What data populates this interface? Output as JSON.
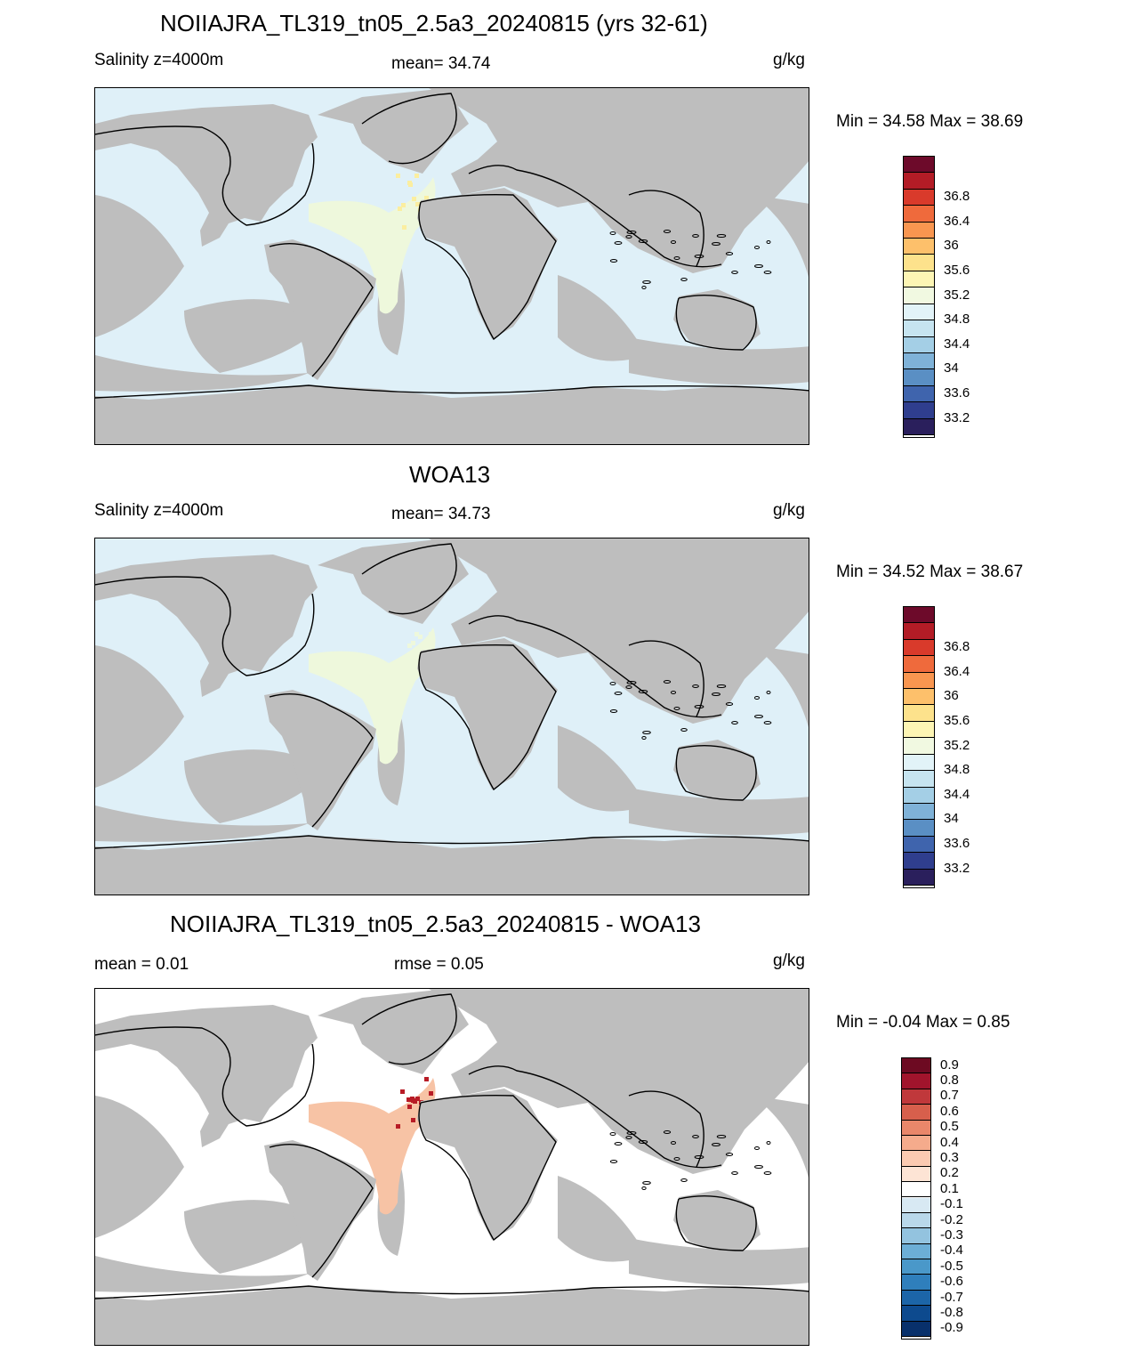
{
  "panels": [
    {
      "title": "NOIIAJRA_TL319_tn05_2.5a3_20240815 (yrs 32-61)",
      "left_label": "Salinity z=4000m",
      "center_label": "mean=  34.74",
      "units": "g/kg",
      "minmax": "Min =  34.58 Max =  38.69",
      "ocean_color": "#dff0f8",
      "anomaly_color": "#eef8dc",
      "highlight_color": "#fbeea0",
      "colorbar_colors": [
        "#2a1f5c",
        "#2f3e8e",
        "#3f64ad",
        "#5a8fc4",
        "#7fb2d8",
        "#a4cfe6",
        "#c6e4f0",
        "#e2f3f8",
        "#f1f9e1",
        "#fdf5b4",
        "#fde28c",
        "#fdc06b",
        "#f99650",
        "#ef6a3c",
        "#d93a2b",
        "#b31c26",
        "#6d0a2a"
      ],
      "colorbar_labels": [
        "33.2",
        "33.6",
        "34",
        "34.4",
        "34.8",
        "35.2",
        "35.6",
        "36",
        "36.4",
        "36.8"
      ]
    },
    {
      "title": "WOA13",
      "left_label": "Salinity z=4000m",
      "center_label": "mean=  34.73",
      "units": "g/kg",
      "minmax": "Min =  34.52 Max =  38.67",
      "ocean_color": "#dff0f8",
      "anomaly_color": "#eef8dc",
      "highlight_color": "#fbeea0",
      "colorbar_colors": [
        "#2a1f5c",
        "#2f3e8e",
        "#3f64ad",
        "#5a8fc4",
        "#7fb2d8",
        "#a4cfe6",
        "#c6e4f0",
        "#e2f3f8",
        "#f1f9e1",
        "#fdf5b4",
        "#fde28c",
        "#fdc06b",
        "#f99650",
        "#ef6a3c",
        "#d93a2b",
        "#b31c26",
        "#6d0a2a"
      ],
      "colorbar_labels": [
        "33.2",
        "33.6",
        "34",
        "34.4",
        "34.8",
        "35.2",
        "35.6",
        "36",
        "36.4",
        "36.8"
      ]
    },
    {
      "title": "NOIIAJRA_TL319_tn05_2.5a3_20240815 - WOA13",
      "left_label": "mean =   0.01",
      "center_label": "rmse =   0.05",
      "units": "g/kg",
      "minmax": "Min =  -0.04 Max =    0.85",
      "ocean_color": "#ffffff",
      "anomaly_color": "#f7c3a5",
      "highlight_color": "#b81c26",
      "colorbar_colors": [
        "#08306b",
        "#0d4a8e",
        "#1c65a8",
        "#2f7fbc",
        "#4a98c9",
        "#6caed6",
        "#93c3df",
        "#b9d8ea",
        "#d8e9f3",
        "#ffffff",
        "#fde4d5",
        "#fbcab1",
        "#f5ab8c",
        "#e9876a",
        "#d75f4c",
        "#c0383b",
        "#a1142c",
        "#6d0a22"
      ],
      "colorbar_labels": [
        "-0.9",
        "-0.8",
        "-0.7",
        "-0.6",
        "-0.5",
        "-0.4",
        "-0.3",
        "-0.2",
        "-0.1",
        "0.1",
        "0.2",
        "0.3",
        "0.4",
        "0.5",
        "0.6",
        "0.7",
        "0.8",
        "0.9"
      ]
    }
  ]
}
